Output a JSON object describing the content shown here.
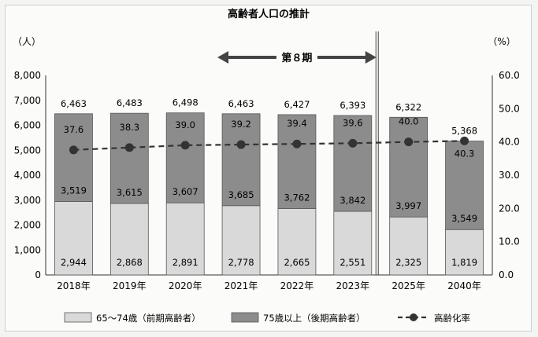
{
  "chart_data": {
    "type": "bar",
    "title": "高齢者人口の推計",
    "ylabel": "（人）",
    "y2label": "（%）",
    "ylim": [
      0,
      8000
    ],
    "y2lim": [
      0,
      60
    ],
    "yticks": [
      "0",
      "1,000",
      "2,000",
      "3,000",
      "4,000",
      "5,000",
      "6,000",
      "7,000",
      "8,000"
    ],
    "y2ticks": [
      "0.0",
      "10.0",
      "20.0",
      "30.0",
      "40.0",
      "50.0",
      "60.0"
    ],
    "categories": [
      "2018年",
      "2019年",
      "2020年",
      "2021年",
      "2022年",
      "2023年",
      "2025年",
      "2040年"
    ],
    "period_label": "第８期",
    "series": [
      {
        "name": "65～74歳（前期高齢者）",
        "values": [
          2944,
          2868,
          2891,
          2778,
          2665,
          2551,
          2325,
          1819
        ],
        "labels": [
          "2,944",
          "2,868",
          "2,891",
          "2,778",
          "2,665",
          "2,551",
          "2,325",
          "1,819"
        ],
        "color": "#d9d9d9"
      },
      {
        "name": "75歳以上（後期高齢者）",
        "values": [
          3519,
          3615,
          3607,
          3685,
          3762,
          3842,
          3997,
          3549
        ],
        "labels": [
          "3,519",
          "3,615",
          "3,607",
          "3,685",
          "3,762",
          "3,842",
          "3,997",
          "3,549"
        ],
        "color": "#8c8c8c"
      },
      {
        "name": "高齢化率",
        "axis": "right",
        "values": [
          37.6,
          38.3,
          39.0,
          39.2,
          39.4,
          39.6,
          40.0,
          40.3
        ],
        "labels": [
          "37.6",
          "38.3",
          "39.0",
          "39.2",
          "39.4",
          "39.6",
          "40.0",
          "40.3"
        ],
        "color": "#333333"
      }
    ],
    "totals": [
      "6,463",
      "6,483",
      "6,498",
      "6,463",
      "6,427",
      "6,393",
      "6,322",
      "5,368"
    ],
    "legend_position": "bottom"
  }
}
